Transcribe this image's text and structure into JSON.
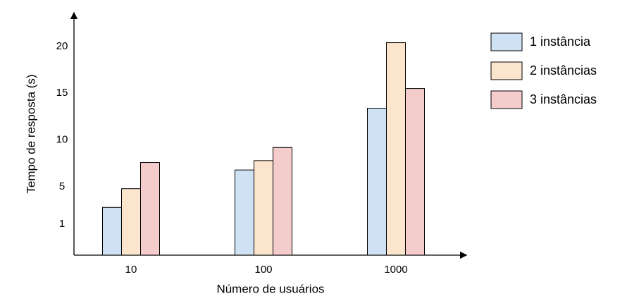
{
  "chart_data": {
    "type": "bar",
    "x_label": "Número de usuários",
    "y_label": "Tempo de resposta (s)",
    "categories": [
      "10",
      "100",
      "1000"
    ],
    "series": [
      {
        "name": "1 instância",
        "color": "#cfe2f3",
        "values": [
          2.8,
          6.8,
          13.4
        ]
      },
      {
        "name": "2 instâncias",
        "color": "#fce5cd",
        "values": [
          4.8,
          7.8,
          20.4
        ]
      },
      {
        "name": "3 instâncias",
        "color": "#f4cccc",
        "values": [
          7.6,
          9.2,
          15.5
        ]
      }
    ],
    "ylim": [
      -2.3,
      23
    ],
    "yticks": [
      1,
      5,
      10,
      15,
      20
    ],
    "legend": "right"
  }
}
